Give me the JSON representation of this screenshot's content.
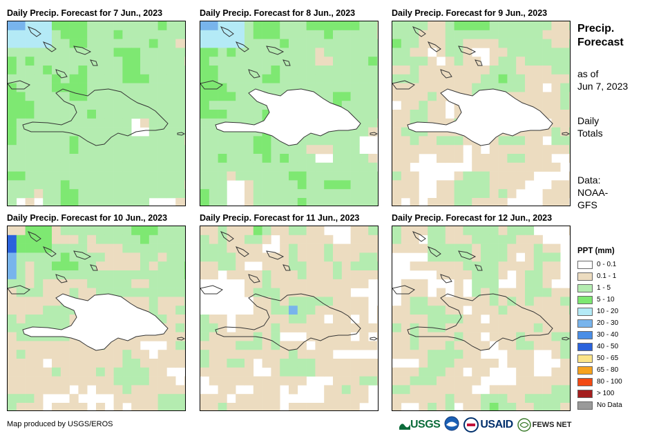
{
  "panels": [
    {
      "title": "Daily Precip. Forecast for 7 Jun., 2023"
    },
    {
      "title": "Daily Precip. Forecast for 8 Jun., 2023"
    },
    {
      "title": "Daily Precip. Forecast for 9 Jun., 2023"
    },
    {
      "title": "Daily Precip. Forecast for 10 Jun., 2023"
    },
    {
      "title": "Daily Precip. Forecast for 11 Jun., 2023"
    },
    {
      "title": "Daily Precip. Forecast for 12 Jun., 2023"
    }
  ],
  "side": {
    "title_line1": "Precip.",
    "title_line2": "Forecast",
    "asof_line1": "as of",
    "asof_line2": "Jun 7, 2023",
    "totals_line1": "Daily",
    "totals_line2": "Totals",
    "data_line1": "Data:",
    "data_line2": "NOAA-",
    "data_line3": "GFS"
  },
  "legend": {
    "title": "PPT (mm)",
    "items": [
      {
        "label": "0 - 0.1",
        "color": "#ffffff"
      },
      {
        "label": "0.1 - 1",
        "color": "#ecdcc0"
      },
      {
        "label": "1 - 5",
        "color": "#b4ecb0"
      },
      {
        "label": "5 - 10",
        "color": "#7ee872"
      },
      {
        "label": "10 - 20",
        "color": "#b4eaf6"
      },
      {
        "label": "20 - 30",
        "color": "#78b4ec"
      },
      {
        "label": "30 - 40",
        "color": "#4a8ee6"
      },
      {
        "label": "40 - 50",
        "color": "#2a62dc"
      },
      {
        "label": "50 - 65",
        "color": "#fbe488"
      },
      {
        "label": "65 - 80",
        "color": "#f6a21e"
      },
      {
        "label": "80 - 100",
        "color": "#f24a14"
      },
      {
        "label": "> 100",
        "color": "#a41e1e"
      },
      {
        "label": "No Data",
        "color": "#9a9a9a"
      }
    ]
  },
  "footer": {
    "credit": "Map produced by USGS/EROS",
    "logo_usgs": "USGS",
    "logo_usaid": "USAID",
    "logo_fews": "FEWS NET"
  }
}
